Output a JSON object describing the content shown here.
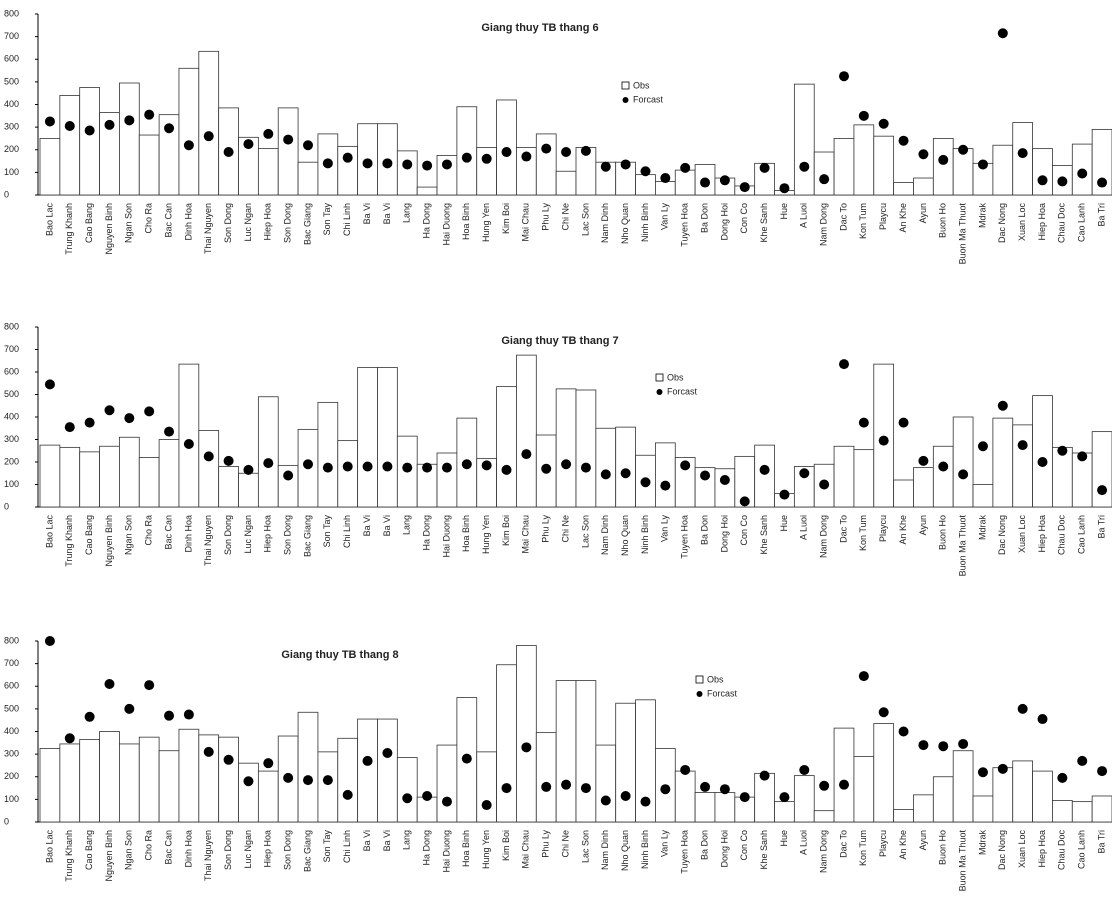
{
  "chart_data": [
    {
      "type": "bar",
      "title": "Giang thuy TB thang 6",
      "categories": [
        "Bao Lac",
        "Trung Khanh",
        "Cao Bang",
        "Nguyen Binh",
        "Ngan Son",
        "Cho Ra",
        "Bac Can",
        "Dinh Hoa",
        "Thai Nguyen",
        "Son Dong",
        "Luc Ngan",
        "Hiep Hoa",
        "Son Dong",
        "Bac Giang",
        "Son Tay",
        "Chi Linh",
        "Ba Vi",
        "Ba Vi",
        "Lang",
        "Ha Dong",
        "Hai Duong",
        "Hoa Binh",
        "Hung Yen",
        "Kim Boi",
        "Mai Chau",
        "Phu Ly",
        "Chi Ne",
        "Lac Son",
        "Nam Dinh",
        "Nho Quan",
        "Ninh Binh",
        "Van Ly",
        "Tuyen Hoa",
        "Ba Don",
        "Dong Hoi",
        "Con Co",
        "Khe Sanh",
        "Hue",
        "A Luoi",
        "Nam Dong",
        "Dac To",
        "Kon Tum",
        "Playcu",
        "An Khe",
        "Ayun",
        "Buon Ho",
        "Buon Ma Thuot",
        "Mdrak",
        "Dac Nong",
        "Xuan Loc",
        "Hiep Hoa",
        "Chau Doc",
        "Cao Lanh",
        "Ba Tri"
      ],
      "series": [
        {
          "name": "Obs",
          "type": "bar",
          "color": "#ffffff",
          "values": [
            250,
            440,
            475,
            365,
            495,
            265,
            355,
            560,
            635,
            385,
            255,
            205,
            385,
            145,
            270,
            215,
            315,
            315,
            195,
            35,
            175,
            390,
            210,
            420,
            210,
            270,
            105,
            210,
            145,
            145,
            90,
            60,
            110,
            135,
            75,
            40,
            140,
            20,
            490,
            190,
            250,
            310,
            260,
            55,
            75,
            250,
            205,
            140,
            220,
            320,
            205,
            130,
            225,
            290
          ]
        },
        {
          "name": "Forcast",
          "type": "scatter",
          "color": "#000000",
          "values": [
            325,
            305,
            285,
            310,
            330,
            355,
            295,
            220,
            260,
            190,
            225,
            270,
            245,
            220,
            140,
            165,
            140,
            140,
            135,
            130,
            135,
            165,
            160,
            190,
            170,
            205,
            190,
            195,
            125,
            135,
            105,
            75,
            120,
            55,
            65,
            35,
            120,
            30,
            125,
            70,
            525,
            350,
            315,
            240,
            180,
            155,
            200,
            135,
            715,
            185,
            65,
            60,
            95,
            55
          ]
        }
      ],
      "ylim": [
        0,
        800
      ],
      "yticks": [
        0,
        100,
        200,
        300,
        400,
        500,
        600,
        700,
        800
      ]
    },
    {
      "type": "bar",
      "title": "Giang thuy TB thang 7",
      "categories": [
        "Bao Lac",
        "Trung Khanh",
        "Cao Bang",
        "Nguyen Binh",
        "Ngan Son",
        "Cho Ra",
        "Bac Can",
        "Dinh Hoa",
        "Thai Nguyen",
        "Son Dong",
        "Luc Ngan",
        "Hiep Hoa",
        "Son Dong",
        "Bac Giang",
        "Son Tay",
        "Chi Linh",
        "Ba Vi",
        "Ba Vi",
        "Lang",
        "Ha Dong",
        "Hai Duong",
        "Hoa Binh",
        "Hung Yen",
        "Kim Boi",
        "Mai Chau",
        "Phu Ly",
        "Chi Ne",
        "Lac Son",
        "Nam Dinh",
        "Nho Quan",
        "Ninh Binh",
        "Van Ly",
        "Tuyen Hoa",
        "Ba Don",
        "Dong Hoi",
        "Con Co",
        "Khe Sanh",
        "Hue",
        "A Luoi",
        "Nam Dong",
        "Dac To",
        "Kon Tum",
        "Playcu",
        "An Khe",
        "Ayun",
        "Buon Ho",
        "Buon Ma Thuot",
        "Mdrak",
        "Dac Nong",
        "Xuan Loc",
        "Hiep Hoa",
        "Chau Doc",
        "Cao Lanh",
        "Ba Tri"
      ],
      "series": [
        {
          "name": "Obs",
          "type": "bar",
          "color": "#ffffff",
          "values": [
            275,
            265,
            245,
            270,
            310,
            220,
            300,
            635,
            340,
            180,
            150,
            490,
            185,
            345,
            465,
            295,
            620,
            620,
            315,
            190,
            240,
            395,
            215,
            535,
            675,
            320,
            525,
            520,
            350,
            355,
            230,
            285,
            220,
            175,
            170,
            225,
            275,
            60,
            180,
            190,
            270,
            255,
            635,
            120,
            175,
            270,
            400,
            100,
            395,
            365,
            495,
            265,
            240,
            335
          ]
        },
        {
          "name": "Forcast",
          "type": "scatter",
          "color": "#000000",
          "values": [
            545,
            355,
            375,
            430,
            395,
            425,
            335,
            280,
            225,
            205,
            165,
            195,
            140,
            190,
            175,
            180,
            180,
            180,
            175,
            175,
            175,
            190,
            185,
            165,
            235,
            170,
            190,
            175,
            145,
            150,
            110,
            95,
            185,
            140,
            120,
            25,
            165,
            55,
            150,
            100,
            635,
            375,
            295,
            375,
            205,
            180,
            145,
            270,
            450,
            275,
            200,
            250,
            225,
            75
          ]
        }
      ],
      "ylim": [
        0,
        800
      ],
      "yticks": [
        0,
        100,
        200,
        300,
        400,
        500,
        600,
        700,
        800
      ]
    },
    {
      "type": "bar",
      "title": "Giang thuy TB thang 8",
      "categories": [
        "Bao Lac",
        "Trung Khanh",
        "Cao Bang",
        "Nguyen Binh",
        "Ngan Son",
        "Cho Ra",
        "Bac Can",
        "Dinh Hoa",
        "Thai Nguyen",
        "Son Dong",
        "Luc Ngan",
        "Hiep Hoa",
        "Son Dong",
        "Bac Giang",
        "Son Tay",
        "Chi Linh",
        "Ba Vi",
        "Ba Vi",
        "Lang",
        "Ha Dong",
        "Hai Duong",
        "Hoa Binh",
        "Hung Yen",
        "Kim Boi",
        "Mai Chau",
        "Phu Ly",
        "Chi Ne",
        "Lac Son",
        "Nam Dinh",
        "Nho Quan",
        "Ninh Binh",
        "Van Ly",
        "Tuyen Hoa",
        "Ba Don",
        "Dong Hoi",
        "Con Co",
        "Khe Sanh",
        "Hue",
        "A Luoi",
        "Nam Dong",
        "Dac To",
        "Kon Tum",
        "Playcu",
        "An Khe",
        "Ayun",
        "Buon Ho",
        "Buon Ma Thuot",
        "Mdrak",
        "Dac Nong",
        "Xuan Loc",
        "Hiep Hoa",
        "Chau Doc",
        "Cao Lanh",
        "Ba Tri"
      ],
      "series": [
        {
          "name": "Obs",
          "type": "bar",
          "color": "#ffffff",
          "values": [
            325,
            345,
            365,
            400,
            345,
            375,
            315,
            410,
            385,
            375,
            260,
            225,
            380,
            485,
            310,
            370,
            455,
            455,
            285,
            110,
            340,
            550,
            310,
            695,
            780,
            395,
            625,
            625,
            340,
            525,
            540,
            325,
            225,
            130,
            130,
            110,
            215,
            90,
            205,
            50,
            415,
            290,
            435,
            55,
            120,
            200,
            315,
            115,
            240,
            270,
            225,
            95,
            90,
            115
          ]
        },
        {
          "name": "Forcast",
          "type": "scatter",
          "color": "#000000",
          "values": [
            800,
            370,
            465,
            610,
            500,
            605,
            470,
            475,
            310,
            275,
            180,
            260,
            195,
            185,
            185,
            120,
            270,
            305,
            105,
            115,
            90,
            280,
            75,
            150,
            330,
            155,
            165,
            150,
            95,
            115,
            90,
            145,
            230,
            155,
            145,
            110,
            205,
            110,
            230,
            160,
            165,
            645,
            485,
            400,
            340,
            335,
            345,
            220,
            235,
            500,
            455,
            195,
            270,
            225
          ]
        }
      ],
      "ylim": [
        0,
        800
      ],
      "yticks": [
        0,
        100,
        200,
        300,
        400,
        500,
        600,
        700,
        800
      ]
    }
  ]
}
